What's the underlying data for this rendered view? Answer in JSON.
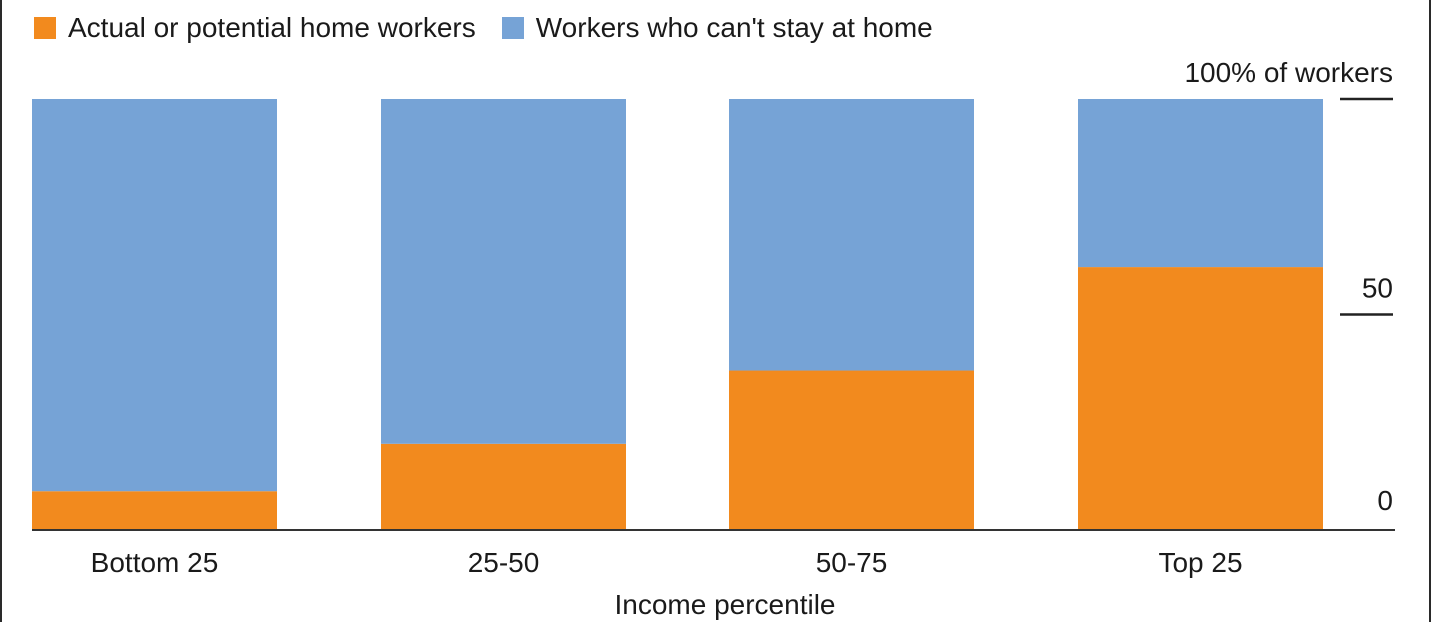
{
  "chart_data": {
    "type": "bar",
    "stacked": true,
    "categories": [
      "Bottom 25",
      "25-50",
      "50-75",
      "Top 25"
    ],
    "series": [
      {
        "name": "Actual or potential home workers",
        "color": "#f28a1e",
        "values": [
          9,
          20,
          37,
          61
        ]
      },
      {
        "name": "Workers who can't stay at home",
        "color": "#76a3d6",
        "values": [
          91,
          80,
          63,
          39
        ]
      }
    ],
    "xlabel": "Income percentile",
    "ylabel": "",
    "ylim": [
      0,
      100
    ],
    "yticks": [
      {
        "value": 100,
        "label": "100% of workers"
      },
      {
        "value": 50,
        "label": "50"
      },
      {
        "value": 0,
        "label": "0"
      }
    ],
    "legend_position": "top-left",
    "grid": false
  }
}
